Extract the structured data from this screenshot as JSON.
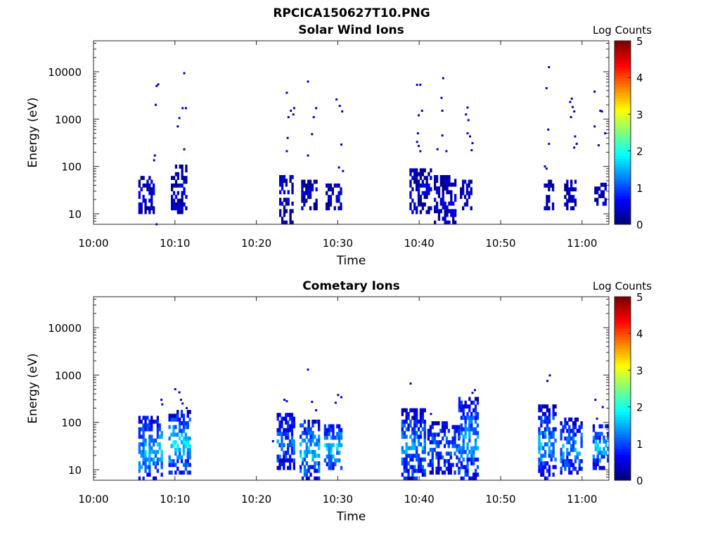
{
  "figure": {
    "title": "RPCICA150627T10.PNG"
  },
  "chart_data": [
    {
      "type": "heatmap",
      "title": "Solar Wind Ions",
      "xlabel": "Time",
      "ylabel": "Energy (eV)",
      "x_ticks": [
        "10:00",
        "10:10",
        "10:20",
        "10:30",
        "10:40",
        "10:50",
        "11:00"
      ],
      "y_ticks": [
        "10",
        "100",
        "1000",
        "10000"
      ],
      "y_scale": "log",
      "ylim": [
        6,
        45000
      ],
      "xlim_minutes": [
        0,
        63.3
      ],
      "colorbar": {
        "label": "Log Counts",
        "range": [
          0,
          5
        ],
        "ticks": [
          "0",
          "1",
          "2",
          "3",
          "4",
          "5"
        ],
        "colormap": "jet"
      },
      "bursts": [
        {
          "t_start": 5.5,
          "t_end": 7.5,
          "e_low": 10,
          "e_high": 60,
          "level": 0.3
        },
        {
          "t_start": 9.5,
          "t_end": 11.5,
          "e_low": 10,
          "e_high": 100,
          "level": 0.3
        },
        {
          "t_start": 22.8,
          "t_end": 24.5,
          "e_low": 6,
          "e_high": 60,
          "level": 0.3
        },
        {
          "t_start": 25.5,
          "t_end": 27.5,
          "e_low": 12,
          "e_high": 45,
          "level": 0.3
        },
        {
          "t_start": 28.5,
          "t_end": 30.3,
          "e_low": 12,
          "e_high": 40,
          "level": 0.3
        },
        {
          "t_start": 38.8,
          "t_end": 41.5,
          "e_low": 10,
          "e_high": 80,
          "level": 0.35
        },
        {
          "t_start": 41.8,
          "t_end": 44.5,
          "e_low": 6,
          "e_high": 60,
          "level": 0.3
        },
        {
          "t_start": 45.0,
          "t_end": 46.5,
          "e_low": 12,
          "e_high": 45,
          "level": 0.3
        },
        {
          "t_start": 55.3,
          "t_end": 56.5,
          "e_low": 12,
          "e_high": 45,
          "level": 0.3
        },
        {
          "t_start": 57.8,
          "t_end": 59.2,
          "e_low": 12,
          "e_high": 45,
          "level": 0.3
        },
        {
          "t_start": 61.5,
          "t_end": 63.0,
          "e_low": 15,
          "e_high": 45,
          "level": 0.3
        }
      ],
      "scatter": [
        {
          "t": 7.7,
          "e": 5000
        },
        {
          "t": 7.9,
          "e": 5400
        },
        {
          "t": 7.6,
          "e": 2000
        },
        {
          "t": 11.1,
          "e": 9300
        },
        {
          "t": 10.9,
          "e": 1700
        },
        {
          "t": 11.3,
          "e": 1700
        },
        {
          "t": 10.5,
          "e": 1050
        },
        {
          "t": 10.3,
          "e": 700
        },
        {
          "t": 11.1,
          "e": 230
        },
        {
          "t": 7.5,
          "e": 170
        },
        {
          "t": 7.4,
          "e": 135
        },
        {
          "t": 23.7,
          "e": 3600
        },
        {
          "t": 24.2,
          "e": 1500
        },
        {
          "t": 24.6,
          "e": 1700
        },
        {
          "t": 24.5,
          "e": 1250
        },
        {
          "t": 23.9,
          "e": 1100
        },
        {
          "t": 26.3,
          "e": 6200
        },
        {
          "t": 27.3,
          "e": 1700
        },
        {
          "t": 27.0,
          "e": 1100
        },
        {
          "t": 26.8,
          "e": 480
        },
        {
          "t": 26.3,
          "e": 170
        },
        {
          "t": 29.8,
          "e": 2600
        },
        {
          "t": 30.2,
          "e": 1900
        },
        {
          "t": 30.5,
          "e": 1450
        },
        {
          "t": 30.4,
          "e": 290
        },
        {
          "t": 30.1,
          "e": 95
        },
        {
          "t": 30.6,
          "e": 80
        },
        {
          "t": 23.8,
          "e": 400
        },
        {
          "t": 23.7,
          "e": 210
        },
        {
          "t": 39.7,
          "e": 5300
        },
        {
          "t": 40.1,
          "e": 5300
        },
        {
          "t": 42.9,
          "e": 7300
        },
        {
          "t": 42.7,
          "e": 2800
        },
        {
          "t": 40.3,
          "e": 1500
        },
        {
          "t": 39.9,
          "e": 1200
        },
        {
          "t": 42.8,
          "e": 1500
        },
        {
          "t": 45.9,
          "e": 1750
        },
        {
          "t": 45.7,
          "e": 1250
        },
        {
          "t": 46.0,
          "e": 950
        },
        {
          "t": 39.8,
          "e": 500
        },
        {
          "t": 39.7,
          "e": 330
        },
        {
          "t": 39.9,
          "e": 270
        },
        {
          "t": 40.1,
          "e": 210
        },
        {
          "t": 42.8,
          "e": 450
        },
        {
          "t": 42.2,
          "e": 230
        },
        {
          "t": 43.3,
          "e": 210
        },
        {
          "t": 45.9,
          "e": 500
        },
        {
          "t": 46.2,
          "e": 430
        },
        {
          "t": 46.5,
          "e": 310
        },
        {
          "t": 46.4,
          "e": 220
        },
        {
          "t": 55.9,
          "e": 12500
        },
        {
          "t": 55.6,
          "e": 4500
        },
        {
          "t": 58.7,
          "e": 2700
        },
        {
          "t": 58.5,
          "e": 2300
        },
        {
          "t": 58.8,
          "e": 1800
        },
        {
          "t": 59.0,
          "e": 1450
        },
        {
          "t": 58.6,
          "e": 1100
        },
        {
          "t": 55.8,
          "e": 600
        },
        {
          "t": 59.1,
          "e": 430
        },
        {
          "t": 59.3,
          "e": 300
        },
        {
          "t": 59.0,
          "e": 250
        },
        {
          "t": 55.9,
          "e": 300
        },
        {
          "t": 61.5,
          "e": 3800
        },
        {
          "t": 62.2,
          "e": 1500
        },
        {
          "t": 62.4,
          "e": 1450
        },
        {
          "t": 61.5,
          "e": 700
        },
        {
          "t": 62.8,
          "e": 500
        },
        {
          "t": 62.0,
          "e": 280
        },
        {
          "t": 55.4,
          "e": 100
        },
        {
          "t": 55.6,
          "e": 90
        },
        {
          "t": 7.7,
          "e": 6
        }
      ]
    },
    {
      "type": "heatmap",
      "title": "Cometary Ions",
      "xlabel": "Time",
      "ylabel": "Energy (eV)",
      "x_ticks": [
        "10:00",
        "10:10",
        "10:20",
        "10:30",
        "10:40",
        "10:50",
        "11:00"
      ],
      "y_ticks": [
        "10",
        "100",
        "1000",
        "10000"
      ],
      "y_scale": "log",
      "ylim": [
        6,
        45000
      ],
      "xlim_minutes": [
        0,
        63.3
      ],
      "colorbar": {
        "label": "Log Counts",
        "range": [
          0,
          5
        ],
        "ticks": [
          "0",
          "1",
          "2",
          "3",
          "4",
          "5"
        ],
        "colormap": "jet"
      },
      "bursts": [
        {
          "t_start": 5.5,
          "t_end": 8.3,
          "e_low": 6,
          "e_high": 120,
          "level": 1.4
        },
        {
          "t_start": 9.2,
          "t_end": 11.8,
          "e_low": 8,
          "e_high": 160,
          "level": 1.5
        },
        {
          "t_start": 22.5,
          "t_end": 24.6,
          "e_low": 10,
          "e_high": 140,
          "level": 1.1
        },
        {
          "t_start": 25.3,
          "t_end": 27.8,
          "e_low": 6,
          "e_high": 110,
          "level": 1.4
        },
        {
          "t_start": 28.3,
          "t_end": 30.5,
          "e_low": 10,
          "e_high": 90,
          "level": 1.5
        },
        {
          "t_start": 37.8,
          "t_end": 40.8,
          "e_low": 6,
          "e_high": 180,
          "level": 1.2
        },
        {
          "t_start": 41.0,
          "t_end": 44.8,
          "e_low": 8,
          "e_high": 100,
          "level": 1.0
        },
        {
          "t_start": 44.8,
          "t_end": 47.3,
          "e_low": 6,
          "e_high": 300,
          "level": 1.3
        },
        {
          "t_start": 54.6,
          "t_end": 56.8,
          "e_low": 6,
          "e_high": 200,
          "level": 1.3
        },
        {
          "t_start": 57.3,
          "t_end": 60.0,
          "e_low": 8,
          "e_high": 110,
          "level": 1.2
        },
        {
          "t_start": 61.3,
          "t_end": 63.2,
          "e_low": 10,
          "e_high": 90,
          "level": 1.4
        }
      ],
      "scatter": [
        {
          "t": 10.0,
          "e": 500
        },
        {
          "t": 10.5,
          "e": 430
        },
        {
          "t": 10.7,
          "e": 300
        },
        {
          "t": 10.9,
          "e": 250
        },
        {
          "t": 11.4,
          "e": 200
        },
        {
          "t": 8.3,
          "e": 300
        },
        {
          "t": 8.4,
          "e": 240
        },
        {
          "t": 23.4,
          "e": 300
        },
        {
          "t": 23.7,
          "e": 280
        },
        {
          "t": 26.3,
          "e": 1300
        },
        {
          "t": 26.8,
          "e": 270
        },
        {
          "t": 27.3,
          "e": 180
        },
        {
          "t": 30.0,
          "e": 380
        },
        {
          "t": 30.4,
          "e": 340
        },
        {
          "t": 29.7,
          "e": 260
        },
        {
          "t": 22.0,
          "e": 40
        },
        {
          "t": 38.9,
          "e": 660
        },
        {
          "t": 39.2,
          "e": 180
        },
        {
          "t": 41.4,
          "e": 150
        },
        {
          "t": 46.8,
          "e": 480
        },
        {
          "t": 46.5,
          "e": 420
        },
        {
          "t": 56.0,
          "e": 980
        },
        {
          "t": 55.7,
          "e": 750
        },
        {
          "t": 61.6,
          "e": 300
        },
        {
          "t": 62.5,
          "e": 210
        },
        {
          "t": 61.8,
          "e": 120
        }
      ]
    }
  ]
}
